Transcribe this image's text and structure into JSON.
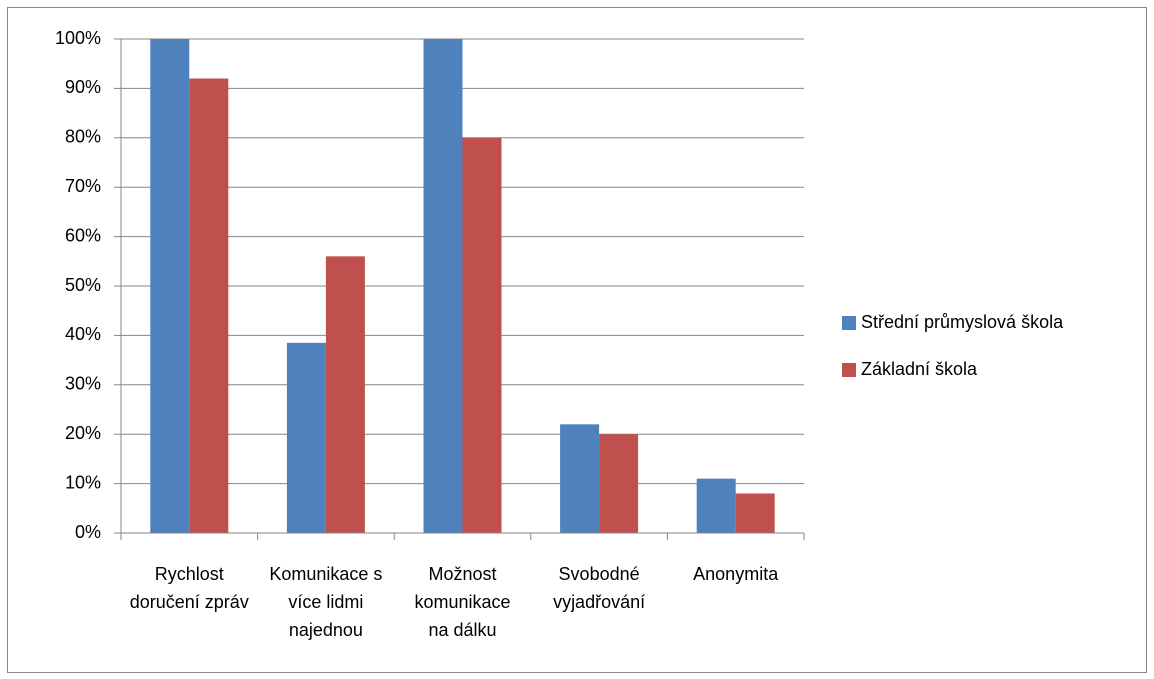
{
  "chart_data": {
    "type": "bar",
    "categories": [
      "Rychlost doručení zpráv",
      "Komunikace s více lidmi najednou",
      "Možnost komunikace na dálku",
      "Svobodné vyjadřování",
      "Anonymita"
    ],
    "series": [
      {
        "name": "Střední průmyslová škola",
        "color": "#4f81bd",
        "values": [
          100,
          38.5,
          100,
          22,
          11
        ]
      },
      {
        "name": "Základní škola",
        "color": "#c0504d",
        "values": [
          92,
          56,
          80,
          20,
          8
        ]
      }
    ],
    "ylim": [
      0,
      100
    ],
    "yticks": [
      {
        "value": 0,
        "label": "0%"
      },
      {
        "value": 10,
        "label": "10%"
      },
      {
        "value": 20,
        "label": "20%"
      },
      {
        "value": 30,
        "label": "30%"
      },
      {
        "value": 40,
        "label": "40%"
      },
      {
        "value": 50,
        "label": "50%"
      },
      {
        "value": 60,
        "label": "60%"
      },
      {
        "value": 70,
        "label": "70%"
      },
      {
        "value": 80,
        "label": "80%"
      },
      {
        "value": 90,
        "label": "90%"
      },
      {
        "value": 100,
        "label": "100%"
      }
    ],
    "grid": true,
    "legend": "right"
  }
}
